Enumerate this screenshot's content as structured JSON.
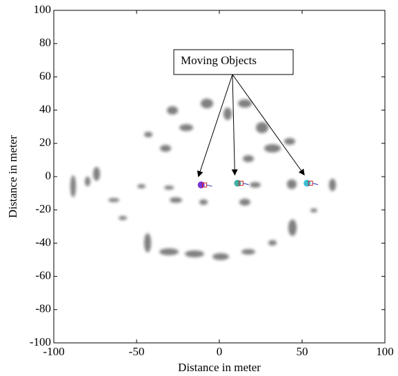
{
  "chart_data": {
    "type": "scatter",
    "annotation": "Moving Objects",
    "x_label": "Distance in meter",
    "y_label": "Distance in meter",
    "x": [
      -11,
      11,
      53
    ],
    "values": [
      -5,
      -4,
      -4
    ],
    "colors": [
      "#6a1fd0",
      "#2aa89a",
      "#22b8d0"
    ],
    "xlim": [
      -100,
      100
    ],
    "ylim": [
      -100,
      100
    ],
    "xticks": [
      -100,
      -50,
      0,
      50,
      100
    ],
    "yticks": [
      -100,
      -80,
      -60,
      -40,
      -20,
      0,
      20,
      40,
      60,
      80,
      100
    ],
    "grid": false
  }
}
